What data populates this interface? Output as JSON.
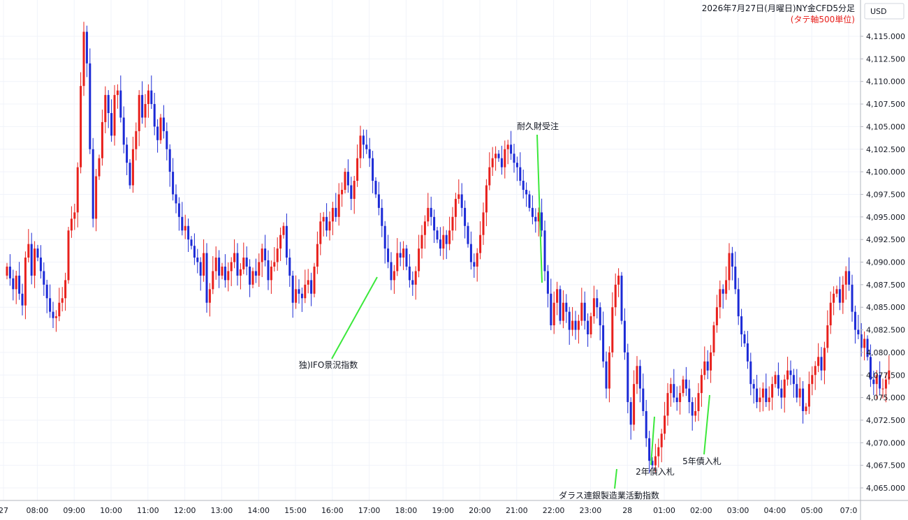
{
  "chart_data": {
    "type": "candlestick",
    "title": "2026年7月27日(月曜日)NY金CFD5分足",
    "subtitle": "(タテ軸500単位)",
    "currency": "USD",
    "ylim": [
      4063.0,
      4120.0
    ],
    "y_ticks": [
      4065.0,
      4067.5,
      4070.0,
      4072.5,
      4075.0,
      4077.5,
      4080.0,
      4082.5,
      4085.0,
      4087.5,
      4090.0,
      4092.5,
      4095.0,
      4097.5,
      4100.0,
      4102.5,
      4105.0,
      4107.5,
      4110.0,
      4112.5,
      4115.0
    ],
    "y_tick_labels": [
      "4,065.000",
      "4,067.500",
      "4,070.000",
      "4,072.500",
      "4,075.000",
      "4,077.500",
      "4,080.000",
      "4,082.500",
      "4,085.000",
      "4,087.500",
      "4,090.000",
      "4,092.500",
      "4,095.000",
      "4,097.500",
      "4,100.000",
      "4,102.500",
      "4,105.000",
      "4,107.500",
      "4,110.000",
      "4,112.500",
      "4,115.000"
    ],
    "x_tick_labels": [
      {
        "label": "27",
        "bar": 0
      },
      {
        "label": "08:00",
        "bar": 11
      },
      {
        "label": "09:00",
        "bar": 23
      },
      {
        "label": "10:00",
        "bar": 35
      },
      {
        "label": "11:00",
        "bar": 47
      },
      {
        "label": "12:00",
        "bar": 59
      },
      {
        "label": "13:00",
        "bar": 71
      },
      {
        "label": "14:00",
        "bar": 83
      },
      {
        "label": "15:00",
        "bar": 95
      },
      {
        "label": "16:00",
        "bar": 107
      },
      {
        "label": "17:00",
        "bar": 119
      },
      {
        "label": "18:00",
        "bar": 131
      },
      {
        "label": "19:00",
        "bar": 143
      },
      {
        "label": "20:00",
        "bar": 155
      },
      {
        "label": "21:00",
        "bar": 167
      },
      {
        "label": "22:00",
        "bar": 179
      },
      {
        "label": "23:00",
        "bar": 191
      },
      {
        "label": "28",
        "bar": 203
      },
      {
        "label": "01:00",
        "bar": 215
      },
      {
        "label": "02:00",
        "bar": 227
      },
      {
        "label": "03:00",
        "bar": 239
      },
      {
        "label": "04:00",
        "bar": 251
      },
      {
        "label": "05:00",
        "bar": 263
      },
      {
        "label": "07:0",
        "bar": 275
      }
    ],
    "closes": [
      4089.5,
      4088.2,
      4087.0,
      4088.5,
      4086.5,
      4085.2,
      4090.5,
      4092.0,
      4088.5,
      4091.5,
      4090.5,
      4089.0,
      4087.5,
      4086.0,
      4084.5,
      4083.8,
      4084.0,
      4085.5,
      4086.0,
      4088.0,
      4093.5,
      4094.8,
      4095.5,
      4100.5,
      4109.5,
      4115.5,
      4112.0,
      4102.5,
      4094.8,
      4099.5,
      4101.5,
      4105.5,
      4108.5,
      4106.5,
      4104.0,
      4108.5,
      4109.0,
      4106.0,
      4103.0,
      4101.0,
      4098.5,
      4102.5,
      4104.5,
      4108.5,
      4106.0,
      4107.5,
      4109.0,
      4107.5,
      4105.0,
      4103.5,
      4106.0,
      4104.5,
      4102.5,
      4100.0,
      4097.5,
      4096.5,
      4095.0,
      4093.5,
      4094.0,
      4092.5,
      4091.8,
      4090.5,
      4090.0,
      4088.5,
      4091.0,
      4085.5,
      4087.0,
      4089.0,
      4090.5,
      4088.5,
      4089.5,
      4088.0,
      4089.0,
      4090.0,
      4091.0,
      4088.5,
      4089.2,
      4090.5,
      4089.5,
      4087.5,
      4089.0,
      4088.5,
      4090.0,
      4091.5,
      4090.2,
      4088.0,
      4089.5,
      4090.0,
      4091.5,
      4093.0,
      4094.0,
      4090.5,
      4088.5,
      4085.5,
      4087.0,
      4086.5,
      4086.0,
      4087.5,
      4088.0,
      4086.5,
      4089.5,
      4092.0,
      4094.5,
      4095.0,
      4093.5,
      4094.5,
      4096.0,
      4095.0,
      4097.5,
      4098.0,
      4100.0,
      4098.5,
      4097.0,
      4099.0,
      4101.5,
      4104.0,
      4103.0,
      4102.5,
      4101.5,
      4099.0,
      4097.5,
      4096.0,
      4094.0,
      4091.5,
      4090.0,
      4088.0,
      4089.0,
      4091.0,
      4090.5,
      4091.5,
      4089.5,
      4088.0,
      4087.5,
      4089.0,
      4091.5,
      4093.0,
      4094.5,
      4096.0,
      4095.0,
      4093.5,
      4092.5,
      4091.5,
      4093.0,
      4092.0,
      4093.5,
      4095.0,
      4097.0,
      4097.5,
      4096.0,
      4094.0,
      4092.0,
      4090.0,
      4089.5,
      4091.0,
      4093.0,
      4095.5,
      4098.5,
      4100.5,
      4101.5,
      4102.0,
      4101.5,
      4100.5,
      4102.5,
      4103.0,
      4102.0,
      4101.0,
      4100.5,
      4099.0,
      4098.0,
      4097.5,
      4096.0,
      4095.0,
      4094.5,
      4095.5,
      4093.5,
      4089.0,
      4086.5,
      4083.0,
      4085.5,
      4087.0,
      4083.5,
      4085.5,
      4084.5,
      4082.5,
      4083.5,
      4082.5,
      4083.5,
      4085.5,
      4083.5,
      4082.0,
      4084.0,
      4086.0,
      4085.0,
      4083.0,
      4079.0,
      4076.0,
      4080.0,
      4085.0,
      4087.5,
      4088.5,
      4083.5,
      4080.0,
      4074.5,
      4072.0,
      4076.5,
      4078.5,
      4076.0,
      4073.5,
      4070.5,
      4068.0,
      4067.5,
      4068.5,
      4069.5,
      4071.0,
      4073.0,
      4075.5,
      4076.5,
      4075.0,
      4074.5,
      4075.5,
      4077.0,
      4076.0,
      4074.5,
      4073.0,
      4073.5,
      4075.5,
      4077.5,
      4079.0,
      4078.0,
      4080.0,
      4083.0,
      4085.0,
      4087.0,
      4086.5,
      4088.0,
      4091.0,
      4089.5,
      4087.0,
      4084.0,
      4082.0,
      4081.0,
      4079.0,
      4076.5,
      4076.0,
      4074.5,
      4075.0,
      4076.0,
      4074.5,
      4075.0,
      4076.5,
      4077.5,
      4076.0,
      4075.0,
      4077.0,
      4078.0,
      4077.5,
      4076.5,
      4075.0,
      4076.0,
      4073.5,
      4074.0,
      4076.5,
      4077.5,
      4078.5,
      4079.5,
      4078.0,
      4080.5,
      4083.0,
      4085.5,
      4086.5,
      4087.0,
      4085.5,
      4087.5,
      4089.0,
      4087.5,
      4084.5,
      4082.5,
      4082.0,
      4080.5,
      4081.5,
      4079.5,
      4077.0,
      4076.5,
      4077.5,
      4076.0,
      4076.0,
      4077.0,
      4078.0
    ],
    "annotations": [
      {
        "text": "独)IFO景況指数",
        "bar": 124
      },
      {
        "text": "耐久財受注",
        "bar": 182
      },
      {
        "text": "ダラス連銀製造業活動指数",
        "bar": 207
      },
      {
        "text": "2年債入札",
        "bar": 220
      },
      {
        "text": "5年債入札",
        "bar": 238
      }
    ],
    "up_color": "#e8201c",
    "down_color": "#1b2ad6",
    "annotation_line_color": "#3be83b",
    "grid": true
  }
}
